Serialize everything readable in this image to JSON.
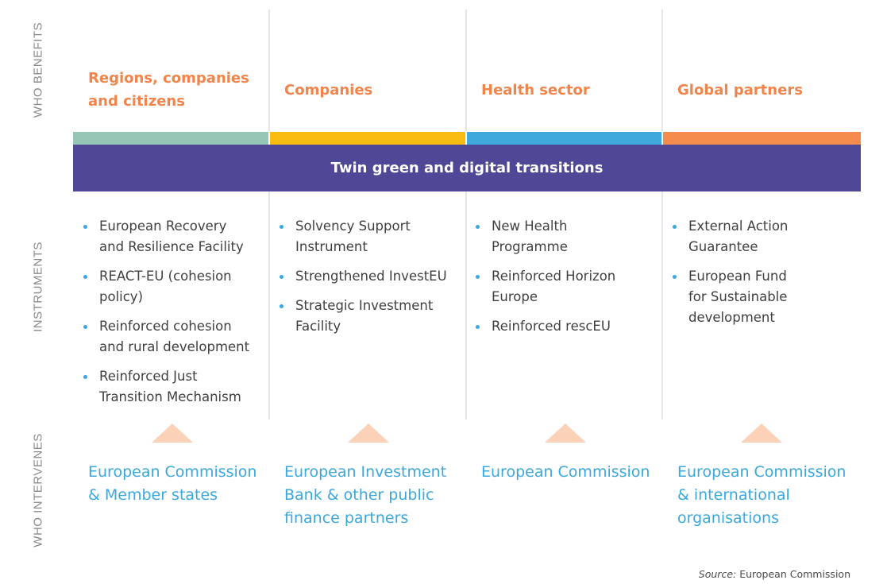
{
  "row_labels": {
    "benefits": "WHO BENEFITS",
    "instruments": "INSTRUMENTS",
    "intervenes": "WHO INTERVENES"
  },
  "banner": "Twin green and digital transitions",
  "colors": {
    "band_1": "#96c7b6",
    "band_2": "#fbbc11",
    "band_3": "#3fa9de",
    "band_4": "#f58b4c",
    "banner": "#4f4896",
    "benefit_text": "#f0844a",
    "intervene_text": "#3aa7dd",
    "arrow": "#fbd2b8"
  },
  "columns": [
    {
      "benefit": "Regions, companies\nand citizens",
      "instruments": [
        "European Recovery\nand Resilience Facility",
        "REACT-EU (cohesion\npolicy)",
        "Reinforced cohesion\nand rural development",
        "Reinforced Just\nTransition Mechanism"
      ],
      "intervenes": "European Commission\n& Member states"
    },
    {
      "benefit": "Companies",
      "instruments": [
        "Solvency Support\nInstrument",
        "Strengthened InvestEU",
        "Strategic Investment\nFacility"
      ],
      "intervenes": "European Investment\nBank & other public\nfinance partners"
    },
    {
      "benefit": "Health sector",
      "instruments": [
        "New Health\nProgramme",
        "Reinforced Horizon\nEurope",
        "Reinforced rescEU"
      ],
      "intervenes": "European Commission"
    },
    {
      "benefit": "Global partners",
      "instruments": [
        "External Action\nGuarantee",
        "European Fund\nfor Sustainable\ndevelopment"
      ],
      "intervenes": "European Commission\n& international\norganisations"
    }
  ],
  "source": {
    "label": "Source:",
    "text": "European Commission"
  }
}
